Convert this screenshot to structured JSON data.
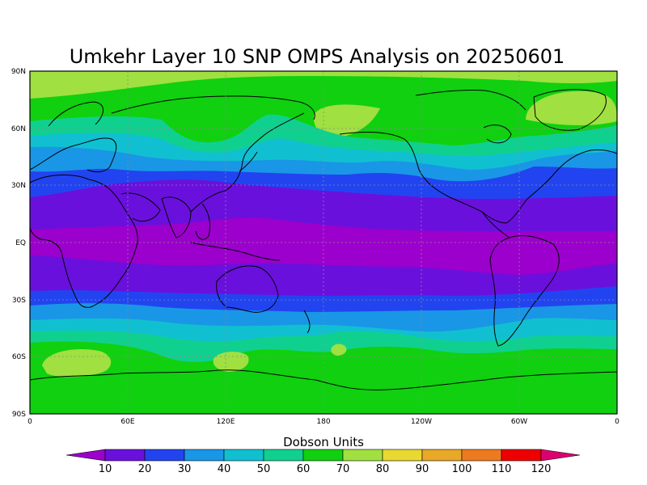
{
  "map": {
    "title": "Umkehr Layer 10 SNP OMPS Analysis on 20250601",
    "lat_labels": [
      "90N",
      "60N",
      "30N",
      "EQ",
      "30S",
      "60S",
      "90S"
    ],
    "lon_labels": [
      "0",
      "60E",
      "120E",
      "180",
      "120W",
      "60W",
      "0"
    ],
    "colorbar_title": "Dobson Units",
    "colorbar_labels": [
      "10",
      "20",
      "30",
      "40",
      "50",
      "60",
      "70",
      "80",
      "90",
      "100",
      "110",
      "120"
    ],
    "colors": {
      "below_10": "#9b00cc",
      "10-20": "#6a10dd",
      "20-30": "#2244f0",
      "30-40": "#1a96e6",
      "40-50": "#10c0d0",
      "50-60": "#10d090",
      "60-70": "#10d010",
      "70-80": "#a0e040",
      "80-90": "#e8d830",
      "90-100": "#e8a828",
      "100-110": "#ee7a20",
      "110-120": "#ee0000",
      "above_120": "#dd0070"
    }
  }
}
